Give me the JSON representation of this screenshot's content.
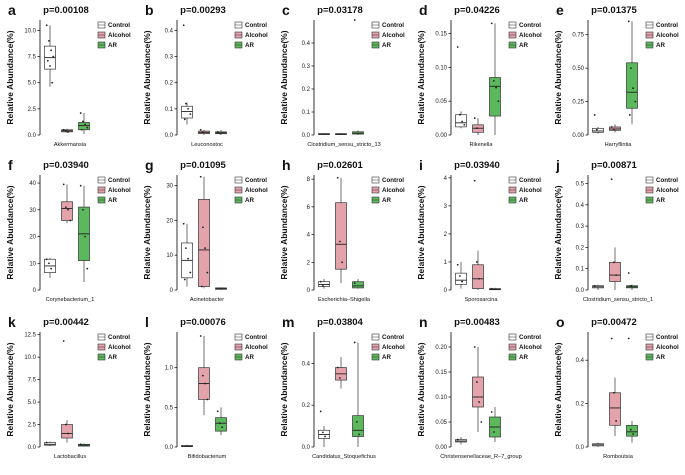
{
  "colors": {
    "Control": "#ffffff",
    "Alcohol": "#e4a3ab",
    "AR": "#5cb85c"
  },
  "legend": [
    "Control",
    "Alcohol",
    "AR"
  ],
  "y_axis_label": "Relative Abundance(%)",
  "chart_data": [
    {
      "type": "box",
      "panel": "a",
      "title": "p=0.00108",
      "xlabel": "Akkermansia",
      "ylabel": "Relative Abundance(%)",
      "ylim": [
        0,
        11
      ],
      "ticks": [
        0,
        2.5,
        5.0,
        7.5,
        10.0
      ],
      "series": [
        {
          "name": "Control",
          "box": [
            4.6,
            6.3,
            7.4,
            8.5,
            10.5
          ],
          "points": [
            10.5,
            9.0,
            8.1,
            7.5,
            7.1,
            6.6,
            5.0
          ]
        },
        {
          "name": "Alcohol",
          "box": [
            0.2,
            0.3,
            0.4,
            0.5,
            0.6
          ],
          "points": [
            0.5,
            0.4,
            0.3
          ]
        },
        {
          "name": "AR",
          "box": [
            0.1,
            0.5,
            0.9,
            1.2,
            2.1
          ],
          "points": [
            2.1,
            1.3,
            1.0,
            0.7,
            0.5
          ]
        }
      ]
    },
    {
      "type": "box",
      "panel": "b",
      "title": "p=0.00293",
      "xlabel": "Leuconostoc",
      "ylabel": "Relative Abundance(%)",
      "ylim": [
        0,
        0.44
      ],
      "ticks": [
        0.0,
        0.1,
        0.2,
        0.3,
        0.4
      ],
      "series": [
        {
          "name": "Control",
          "box": [
            0.04,
            0.065,
            0.09,
            0.11,
            0.125
          ],
          "points": [
            0.42,
            0.12,
            0.1,
            0.08,
            0.06
          ]
        },
        {
          "name": "Alcohol",
          "box": [
            0.0,
            0.005,
            0.01,
            0.015,
            0.02
          ],
          "points": [
            0.02,
            0.01
          ]
        },
        {
          "name": "AR",
          "box": [
            0.0,
            0.005,
            0.008,
            0.012,
            0.02
          ],
          "points": [
            0.012,
            0.006
          ]
        }
      ]
    },
    {
      "type": "box",
      "panel": "c",
      "title": "p=0.03178",
      "xlabel": "Clostridium_sensu_stricto_13",
      "ylabel": "Relative Abundance(%)",
      "ylim": [
        0,
        0.5
      ],
      "ticks": [
        0.0,
        0.1,
        0.2,
        0.3,
        0.4
      ],
      "series": [
        {
          "name": "Control",
          "box": [
            0.0,
            0.002,
            0.004,
            0.006,
            0.008
          ],
          "points": []
        },
        {
          "name": "Alcohol",
          "box": [
            0.0,
            0.002,
            0.004,
            0.006,
            0.008
          ],
          "points": []
        },
        {
          "name": "AR",
          "box": [
            0.0,
            0.004,
            0.008,
            0.014,
            0.02
          ],
          "points": [
            0.5
          ]
        }
      ]
    },
    {
      "type": "box",
      "panel": "d",
      "title": "p=0.04226",
      "xlabel": "Rikenella",
      "ylabel": "Relative Abundance(%)",
      "ylim": [
        0,
        0.17
      ],
      "ticks": [
        0.0,
        0.05,
        0.1,
        0.15
      ],
      "series": [
        {
          "name": "Control",
          "box": [
            0.01,
            0.012,
            0.018,
            0.03,
            0.035
          ],
          "points": [
            0.13,
            0.03,
            0.02,
            0.015
          ]
        },
        {
          "name": "Alcohol",
          "box": [
            0.0,
            0.004,
            0.01,
            0.015,
            0.025
          ],
          "points": [
            0.025,
            0.01
          ]
        },
        {
          "name": "AR",
          "box": [
            0.0,
            0.028,
            0.072,
            0.085,
            0.165
          ],
          "points": [
            0.165,
            0.08,
            0.07,
            0.05
          ]
        }
      ]
    },
    {
      "type": "box",
      "panel": "e",
      "title": "p=0.01375",
      "xlabel": "Harryflintia",
      "ylabel": "Relative Abundance(%)",
      "ylim": [
        0,
        0.86
      ],
      "ticks": [
        0.0,
        0.25,
        0.5,
        0.75
      ],
      "series": [
        {
          "name": "Control",
          "box": [
            0.01,
            0.02,
            0.03,
            0.05,
            0.06
          ],
          "points": [
            0.15,
            0.04
          ]
        },
        {
          "name": "Alcohol",
          "box": [
            0.02,
            0.035,
            0.045,
            0.06,
            0.08
          ],
          "points": [
            0.06,
            0.04
          ]
        },
        {
          "name": "AR",
          "box": [
            0.08,
            0.2,
            0.32,
            0.54,
            0.85
          ],
          "points": [
            0.85,
            0.5,
            0.35,
            0.25,
            0.15
          ]
        }
      ]
    },
    {
      "type": "box",
      "panel": "f",
      "title": "p=0.03940",
      "xlabel": "Corynebacterium_1",
      "ylabel": "Relative Abundance(%)",
      "ylim": [
        0,
        43
      ],
      "ticks": [
        0,
        10,
        20,
        30,
        40
      ],
      "series": [
        {
          "name": "Control",
          "box": [
            4.5,
            6.5,
            9.0,
            11.5,
            12.0
          ],
          "points": [
            11.5,
            10.0,
            8.0
          ]
        },
        {
          "name": "Alcohol",
          "box": [
            25.0,
            26.0,
            30.5,
            33.0,
            39.5
          ],
          "points": [
            39.5,
            31.0,
            30.0,
            26.0
          ]
        },
        {
          "name": "AR",
          "box": [
            3.0,
            11.0,
            21.0,
            31.0,
            39.0
          ],
          "points": [
            39.0,
            30.0,
            20.0,
            8.0
          ]
        }
      ]
    },
    {
      "type": "box",
      "panel": "g",
      "title": "p=0.01095",
      "xlabel": "Acinetobacter",
      "ylabel": "Relative Abundance(%)",
      "ylim": [
        0,
        33
      ],
      "ticks": [
        0,
        10,
        20,
        30
      ],
      "series": [
        {
          "name": "Control",
          "box": [
            1.0,
            3.5,
            8.5,
            13.5,
            19.0
          ],
          "points": [
            19.0,
            12.0,
            9.0,
            5.0,
            3.0
          ]
        },
        {
          "name": "Alcohol",
          "box": [
            0.5,
            1.0,
            11.5,
            26.0,
            32.5
          ],
          "points": [
            32.5,
            18.0,
            12.0,
            5.0,
            1.0
          ]
        },
        {
          "name": "AR",
          "box": [
            0.0,
            0.2,
            0.4,
            0.6,
            0.8
          ],
          "points": [
            0.5
          ]
        }
      ]
    },
    {
      "type": "box",
      "panel": "h",
      "title": "p=0.02601",
      "xlabel": "Escherichia–Shigella",
      "ylabel": "Relative Abundance(%)",
      "ylim": [
        0,
        8.3
      ],
      "ticks": [
        0,
        2,
        4,
        6,
        8
      ],
      "series": [
        {
          "name": "Control",
          "box": [
            0.1,
            0.25,
            0.4,
            0.6,
            0.8
          ],
          "points": [
            0.6,
            0.3
          ]
        },
        {
          "name": "Alcohol",
          "box": [
            0.5,
            1.5,
            3.3,
            6.3,
            8.1
          ],
          "points": [
            8.1,
            3.5,
            2.0
          ]
        },
        {
          "name": "AR",
          "box": [
            0.1,
            0.15,
            0.3,
            0.6,
            0.8
          ],
          "points": [
            0.5
          ]
        }
      ]
    },
    {
      "type": "box",
      "panel": "i",
      "title": "p=0.03940",
      "xlabel": "Sporosarcina",
      "ylabel": "Relative Abundance(%)",
      "ylim": [
        0,
        4.1
      ],
      "ticks": [
        0,
        1,
        2,
        3,
        4
      ],
      "series": [
        {
          "name": "Control",
          "box": [
            0.05,
            0.2,
            0.35,
            0.6,
            1.0
          ],
          "points": [
            0.9,
            0.5,
            0.3
          ]
        },
        {
          "name": "Alcohol",
          "box": [
            0.0,
            0.05,
            0.4,
            0.9,
            1.4
          ],
          "points": [
            3.9,
            1.0,
            0.4
          ]
        },
        {
          "name": "AR",
          "box": [
            0.0,
            0.01,
            0.02,
            0.05,
            0.08
          ],
          "points": [
            0.05
          ]
        }
      ]
    },
    {
      "type": "box",
      "panel": "j",
      "title": "p=0.00871",
      "xlabel": "Clostridium_sensu_stricto_1",
      "ylabel": "Relative Abundance(%)",
      "ylim": [
        0,
        0.54
      ],
      "ticks": [
        0.0,
        0.1,
        0.2,
        0.3,
        0.4,
        0.5
      ],
      "series": [
        {
          "name": "Control",
          "box": [
            0.0,
            0.01,
            0.015,
            0.02,
            0.025
          ],
          "points": [
            0.02
          ]
        },
        {
          "name": "Alcohol",
          "box": [
            0.0,
            0.04,
            0.07,
            0.13,
            0.2
          ],
          "points": [
            0.52,
            0.13,
            0.07
          ]
        },
        {
          "name": "AR",
          "box": [
            0.0,
            0.01,
            0.015,
            0.02,
            0.025
          ],
          "points": [
            0.08,
            0.02
          ]
        }
      ]
    },
    {
      "type": "box",
      "panel": "k",
      "title": "p=0.00442",
      "xlabel": "Lactobacillus",
      "ylabel": "Relative Abundance(%)",
      "ylim": [
        0,
        12.8
      ],
      "ticks": [
        0.0,
        2.5,
        5.0,
        7.5,
        10.0,
        12.5
      ],
      "series": [
        {
          "name": "Control",
          "box": [
            0.1,
            0.2,
            0.3,
            0.5,
            0.6
          ],
          "points": [
            0.5
          ]
        },
        {
          "name": "Alcohol",
          "box": [
            0.5,
            1.0,
            1.5,
            2.5,
            3.0
          ],
          "points": [
            11.8,
            2.5,
            1.5
          ]
        },
        {
          "name": "AR",
          "box": [
            0.05,
            0.1,
            0.2,
            0.3,
            0.4
          ],
          "points": [
            0.3
          ]
        }
      ]
    },
    {
      "type": "box",
      "panel": "l",
      "title": "p=0.00076",
      "xlabel": "Bifidobacterium",
      "ylabel": "Relative Abundance(%)",
      "ylim": [
        0,
        1.45
      ],
      "ticks": [
        0.0,
        0.5,
        1.0
      ],
      "series": [
        {
          "name": "Control",
          "box": [
            0.0,
            0.005,
            0.01,
            0.02,
            0.03
          ],
          "points": []
        },
        {
          "name": "Alcohol",
          "box": [
            0.4,
            0.6,
            0.8,
            1.0,
            1.4
          ],
          "points": [
            1.4,
            0.9,
            0.8,
            0.6
          ]
        },
        {
          "name": "AR",
          "box": [
            0.15,
            0.2,
            0.3,
            0.37,
            0.5
          ],
          "points": [
            0.45,
            0.3,
            0.25
          ]
        }
      ]
    },
    {
      "type": "box",
      "panel": "m",
      "title": "p=0.03804",
      "xlabel": "Candidatus_Stoquefichus",
      "ylabel": "Relative Abundance(%)",
      "ylim": [
        0,
        0.55
      ],
      "ticks": [
        0.0,
        0.2,
        0.4
      ],
      "series": [
        {
          "name": "Control",
          "box": [
            0.0,
            0.04,
            0.06,
            0.08,
            0.1
          ],
          "points": [
            0.17,
            0.07,
            0.05
          ]
        },
        {
          "name": "Alcohol",
          "box": [
            0.28,
            0.32,
            0.35,
            0.38,
            0.43
          ],
          "points": [
            0.38,
            0.33
          ]
        },
        {
          "name": "AR",
          "box": [
            0.0,
            0.05,
            0.08,
            0.15,
            0.5
          ],
          "points": [
            0.5,
            0.12,
            0.06
          ]
        }
      ]
    },
    {
      "type": "box",
      "panel": "n",
      "title": "p=0.00483",
      "xlabel": "Christensenellaceae_R–7_group",
      "ylabel": "Relative Abundance(%)",
      "ylim": [
        0,
        0.23
      ],
      "ticks": [
        0.0,
        0.05,
        0.1,
        0.15,
        0.2
      ],
      "series": [
        {
          "name": "Control",
          "box": [
            0.005,
            0.01,
            0.012,
            0.015,
            0.02
          ],
          "points": [
            0.015
          ]
        },
        {
          "name": "Alcohol",
          "box": [
            0.03,
            0.08,
            0.1,
            0.14,
            0.2
          ],
          "points": [
            0.2,
            0.13,
            0.09,
            0.05
          ]
        },
        {
          "name": "AR",
          "box": [
            0.01,
            0.02,
            0.04,
            0.06,
            0.08
          ],
          "points": [
            0.07,
            0.03
          ]
        }
      ]
    },
    {
      "type": "box",
      "panel": "o",
      "title": "p=0.00472",
      "xlabel": "Romboutsia",
      "ylabel": "Relative Abundance(%)",
      "ylim": [
        0,
        0.53
      ],
      "ticks": [
        0.0,
        0.2,
        0.4
      ],
      "series": [
        {
          "name": "Control",
          "box": [
            0.0,
            0.005,
            0.01,
            0.015,
            0.02
          ],
          "points": []
        },
        {
          "name": "Alcohol",
          "box": [
            0.05,
            0.1,
            0.18,
            0.25,
            0.32
          ],
          "points": [
            0.5,
            0.25,
            0.12
          ]
        },
        {
          "name": "AR",
          "box": [
            0.02,
            0.05,
            0.07,
            0.1,
            0.12
          ],
          "points": [
            0.5,
            0.08,
            0.06
          ]
        }
      ]
    }
  ]
}
